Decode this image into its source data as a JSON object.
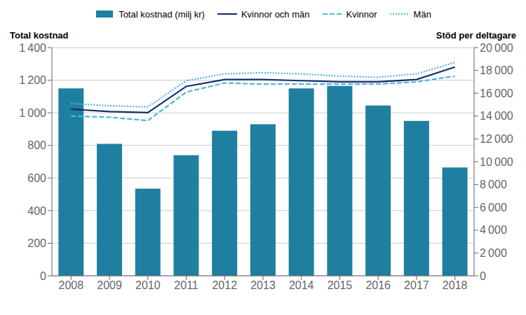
{
  "chart_data": {
    "type": "bar",
    "categories": [
      "2008",
      "2009",
      "2010",
      "2011",
      "2012",
      "2013",
      "2014",
      "2015",
      "2016",
      "2017",
      "2018"
    ],
    "series": [
      {
        "name": "Total kostnad (milj kr)",
        "type": "bar",
        "color": "#1e7fa0",
        "values": [
          1150,
          810,
          535,
          740,
          890,
          930,
          1150,
          1165,
          1045,
          950,
          665
        ]
      },
      {
        "name": "Kvinnor och män",
        "type": "line",
        "axis": "y2",
        "color": "#1a2c6e",
        "line_style": "solid",
        "values": [
          14600,
          14400,
          14300,
          16600,
          17200,
          17200,
          17100,
          17000,
          17000,
          17200,
          18300
        ]
      },
      {
        "name": "Kvinnor",
        "type": "line",
        "axis": "y2",
        "color": "#4cb8d8",
        "line_style": "dashed",
        "values": [
          14000,
          13900,
          13600,
          16100,
          16900,
          16800,
          16800,
          16800,
          16800,
          17000,
          17500
        ]
      },
      {
        "name": "Män",
        "type": "line",
        "axis": "y2",
        "color": "#4cb8d8",
        "line_style": "dotted",
        "values": [
          15100,
          14900,
          14800,
          17100,
          17700,
          17800,
          17700,
          17500,
          17400,
          17700,
          18700
        ]
      }
    ],
    "ylabel": "Total kostnad",
    "y2label": "Stöd per deltagare",
    "ylim": [
      0,
      1400
    ],
    "yticks": [
      0,
      200,
      400,
      600,
      800,
      {
        "value": 1000,
        "label": "1 000"
      },
      {
        "value": 1200,
        "label": "1 200"
      },
      {
        "value": 1400,
        "label": "1 400"
      }
    ],
    "y2lim": [
      0,
      20000
    ],
    "y2ticks": [
      0,
      {
        "value": 2000,
        "label": "2 000"
      },
      {
        "value": 4000,
        "label": "4 000"
      },
      {
        "value": 6000,
        "label": "6 000"
      },
      {
        "value": 8000,
        "label": "8 000"
      },
      {
        "value": 10000,
        "label": "10 000"
      },
      {
        "value": 12000,
        "label": "12 000"
      },
      {
        "value": 14000,
        "label": "14 000"
      },
      {
        "value": 16000,
        "label": "16 000"
      },
      {
        "value": 18000,
        "label": "18 000"
      },
      {
        "value": 20000,
        "label": "20 000"
      }
    ],
    "grid": true,
    "legend": "top"
  }
}
